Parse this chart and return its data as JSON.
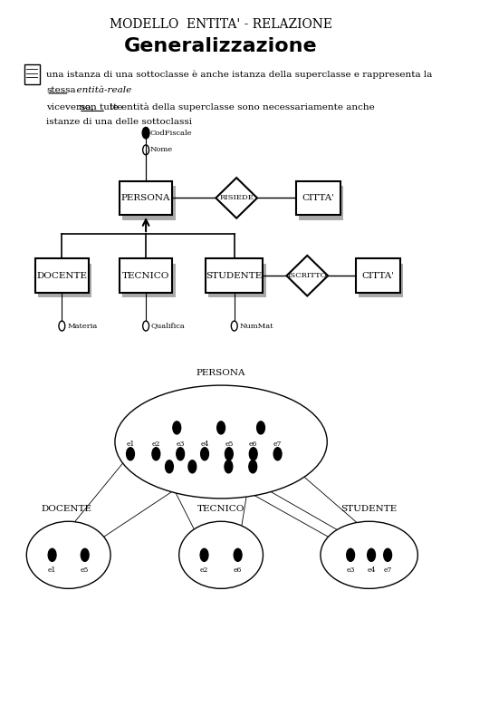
{
  "title1": "MODELLO  ENTITA' - RELAZIONE",
  "title2": "Generalizzazione",
  "text1": "una istanza di una sottoclasse è anche istanza della superclasse e rappresenta la",
  "text2_under1": "stessa",
  "text2_italic": "  entità-reale",
  "text3": "viceversa,",
  "text3_under": "non tutte",
  "text3_rest": " le entità della superclasse sono necessariamente anche",
  "text4": "istanze di una delle sottoclassi",
  "bg_color": "#ffffff"
}
